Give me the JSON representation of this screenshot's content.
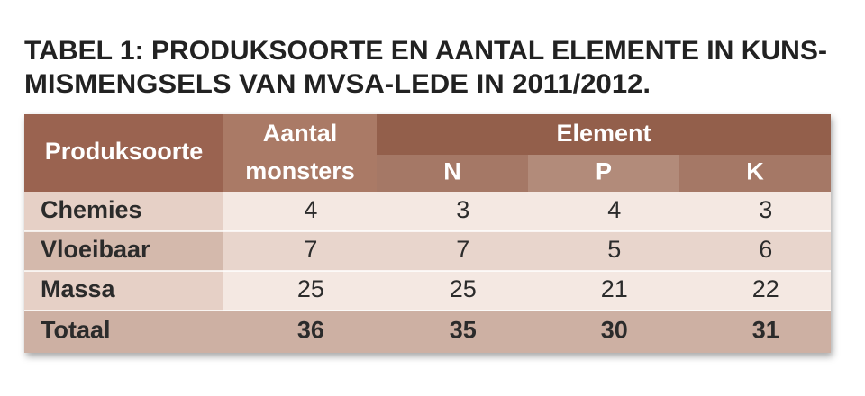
{
  "title": [
    "TABEL 1: PRODUKSOORTE EN AANTAL ELEMENTE IN KUNS-",
    "MISMENGSELS VAN MVSA-LEDE IN 2011/2012."
  ],
  "table": {
    "header": {
      "row_label": "Produksoorte",
      "count": [
        "Aantal",
        "monsters"
      ],
      "group": "Element",
      "elements": [
        "N",
        "P",
        "K"
      ]
    },
    "rows": [
      {
        "label": "Chemies",
        "values": [
          4,
          3,
          4,
          3
        ]
      },
      {
        "label": "Vloeibaar",
        "values": [
          7,
          7,
          5,
          6
        ]
      },
      {
        "label": "Massa",
        "values": [
          25,
          25,
          21,
          22
        ]
      },
      {
        "label": "Totaal",
        "values": [
          36,
          35,
          30,
          31
        ]
      }
    ]
  }
}
